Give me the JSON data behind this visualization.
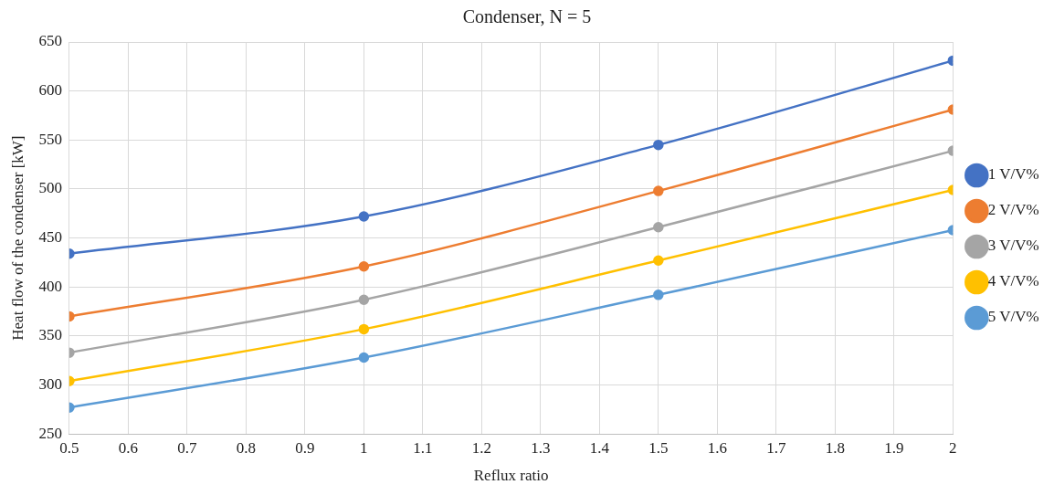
{
  "chart_data": {
    "type": "line",
    "title": "Condenser, N = 5",
    "xlabel": "Reflux ratio",
    "ylabel": "Heat flow of the condenser [kW]",
    "x": [
      0.5,
      1,
      1.5,
      2
    ],
    "series": [
      {
        "name": "1 V/V%",
        "color": "#4472c4",
        "values": [
          434,
          472,
          545,
          631
        ]
      },
      {
        "name": "2 V/V%",
        "color": "#ed7d31",
        "values": [
          370,
          421,
          498,
          581
        ]
      },
      {
        "name": "3 V/V%",
        "color": "#a5a5a5",
        "values": [
          333,
          387,
          461,
          539
        ]
      },
      {
        "name": "4 V/V%",
        "color": "#ffc000",
        "values": [
          304,
          357,
          427,
          499
        ]
      },
      {
        "name": "5 V/V%",
        "color": "#5b9bd5",
        "values": [
          277,
          328,
          392,
          458
        ]
      }
    ],
    "xlim": [
      0.5,
      2
    ],
    "xticks": [
      0.5,
      0.6,
      0.7,
      0.8,
      0.9,
      1,
      1.1,
      1.2,
      1.3,
      1.4,
      1.5,
      1.6,
      1.7,
      1.8,
      1.9,
      2
    ],
    "ylim": [
      250,
      650
    ],
    "yticks": [
      250,
      300,
      350,
      400,
      450,
      500,
      550,
      600,
      650
    ],
    "grid": true,
    "legend": "right",
    "marker": "circle",
    "line_style": "solid"
  }
}
